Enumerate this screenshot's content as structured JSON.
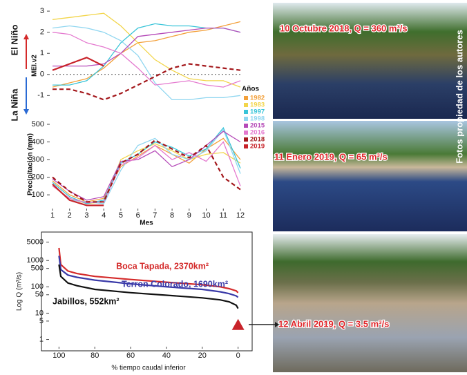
{
  "chart_data": [
    {
      "type": "line",
      "ylabel": "MEI.v2",
      "annotations": [
        "El Niño",
        "La Niña"
      ],
      "x": [
        1,
        2,
        3,
        4,
        5,
        6,
        7,
        8,
        9,
        10,
        11,
        12
      ],
      "ylim": [
        -2.2,
        3.2
      ],
      "yticks": [
        -1,
        0,
        1,
        2,
        3
      ],
      "xlim": [
        1,
        12
      ],
      "legend_title": "Años",
      "series": [
        {
          "name": "1982",
          "color": "#f3a03a",
          "values": [
            -0.6,
            -0.4,
            -0.2,
            0.3,
            1.0,
            1.5,
            1.6,
            1.8,
            2.0,
            2.1,
            2.3,
            2.5
          ]
        },
        {
          "name": "1983",
          "color": "#f2d54a",
          "values": [
            2.6,
            2.7,
            2.8,
            2.9,
            2.3,
            1.5,
            0.7,
            0.2,
            -0.2,
            -0.3,
            -0.3,
            -0.6
          ]
        },
        {
          "name": "1997",
          "color": "#38c4d8",
          "values": [
            -0.5,
            -0.5,
            -0.3,
            0.4,
            1.5,
            2.2,
            2.4,
            2.3,
            2.3,
            2.2,
            2.2,
            2.0
          ]
        },
        {
          "name": "1998",
          "color": "#8fd6f0",
          "values": [
            2.2,
            2.3,
            2.2,
            2.0,
            1.6,
            0.9,
            -0.4,
            -1.2,
            -1.2,
            -1.1,
            -1.1,
            -1.0
          ]
        },
        {
          "name": "2015",
          "color": "#b54ab8",
          "values": [
            0.4,
            0.4,
            0.4,
            0.5,
            1.0,
            1.8,
            1.9,
            2.0,
            2.1,
            2.2,
            2.2,
            2.0
          ]
        },
        {
          "name": "2016",
          "color": "#e479cf",
          "values": [
            2.0,
            1.9,
            1.5,
            1.3,
            1.0,
            0.3,
            -0.5,
            -0.4,
            -0.3,
            -0.5,
            -0.6,
            -0.3
          ]
        },
        {
          "name": "2018",
          "color": "#a3161a",
          "dash": true,
          "values": [
            -0.7,
            -0.7,
            -0.9,
            -1.2,
            -0.9,
            -0.5,
            -0.1,
            0.3,
            0.5,
            0.4,
            0.3,
            0.2
          ]
        },
        {
          "name": "2019",
          "color": "#c8232a",
          "values": [
            0.2,
            0.5,
            0.8,
            0.4,
            null,
            null,
            null,
            null,
            null,
            null,
            null,
            null
          ]
        }
      ]
    },
    {
      "type": "line",
      "ylabel": "Precipitación (mm)",
      "xlabel": "Mes",
      "x": [
        1,
        2,
        3,
        4,
        5,
        6,
        7,
        8,
        9,
        10,
        11,
        12
      ],
      "ylim": [
        30,
        500
      ],
      "yticks": [
        100,
        200,
        300,
        400,
        500
      ],
      "xlim": [
        1,
        12
      ],
      "xticks": [
        1,
        2,
        3,
        4,
        5,
        6,
        7,
        8,
        9,
        10,
        11,
        12
      ],
      "series": [
        {
          "color": "#f3a03a",
          "values": [
            180,
            100,
            60,
            80,
            260,
            320,
            380,
            330,
            280,
            360,
            420,
            300
          ]
        },
        {
          "color": "#f2d54a",
          "values": [
            150,
            80,
            50,
            60,
            300,
            350,
            390,
            350,
            300,
            330,
            340,
            280
          ]
        },
        {
          "color": "#38c4d8",
          "values": [
            170,
            90,
            50,
            70,
            280,
            330,
            400,
            370,
            320,
            360,
            480,
            250
          ]
        },
        {
          "color": "#8fd6f0",
          "values": [
            160,
            70,
            60,
            50,
            240,
            380,
            420,
            330,
            300,
            350,
            470,
            220
          ]
        },
        {
          "color": "#b54ab8",
          "values": [
            190,
            120,
            70,
            90,
            290,
            300,
            350,
            260,
            300,
            380,
            460,
            400
          ]
        },
        {
          "color": "#e479cf",
          "values": [
            150,
            80,
            55,
            60,
            270,
            310,
            380,
            300,
            340,
            290,
            400,
            150
          ]
        },
        {
          "color": "#a3161a",
          "dash": true,
          "values": [
            200,
            120,
            60,
            60,
            280,
            330,
            410,
            360,
            310,
            380,
            200,
            130
          ]
        },
        {
          "color": "#c8232a",
          "values": [
            160,
            70,
            40,
            40,
            null,
            null,
            null,
            null,
            null,
            null,
            null,
            null
          ]
        }
      ]
    },
    {
      "type": "line",
      "log_y": true,
      "ylabel": "Log Q (m³/s)",
      "xlabel": "% tiempo caudal inferior",
      "x": [
        100,
        99,
        95,
        90,
        80,
        60,
        40,
        20,
        10,
        5,
        1,
        0
      ],
      "xlim": [
        104,
        -4
      ],
      "xticks": [
        100,
        80,
        60,
        40,
        20,
        0
      ],
      "ylim": [
        0.6,
        7000
      ],
      "yticks": [
        1,
        5,
        10,
        50,
        100,
        500,
        1000,
        5000
      ],
      "series": [
        {
          "name": "Boca Tapada, 2370km²",
          "color": "#d42a2a",
          "values": [
            3000,
            700,
            400,
            320,
            250,
            190,
            150,
            120,
            100,
            85,
            70,
            60
          ]
        },
        {
          "name": "Terron Colorado, 1690km²",
          "color": "#3a3aa8",
          "values": [
            1500,
            450,
            280,
            230,
            180,
            130,
            100,
            80,
            65,
            55,
            45,
            40
          ]
        },
        {
          "name": "Jabillos, 552km²",
          "color": "#111111",
          "values": [
            700,
            250,
            140,
            110,
            80,
            60,
            48,
            38,
            32,
            27,
            20,
            15
          ]
        }
      ],
      "highlight": {
        "x": 0,
        "y": 3.5,
        "color": "#c8232a"
      }
    }
  ],
  "photos": [
    {
      "caption": "10 Octubre 2018, Q = 360 m³/s"
    },
    {
      "caption": "11 Enero 2019, Q = 65 m³/s"
    },
    {
      "caption": "12 Abril 2019, Q = 3.5 m³/s"
    }
  ],
  "credit": "Fotos propiedad de los autores"
}
